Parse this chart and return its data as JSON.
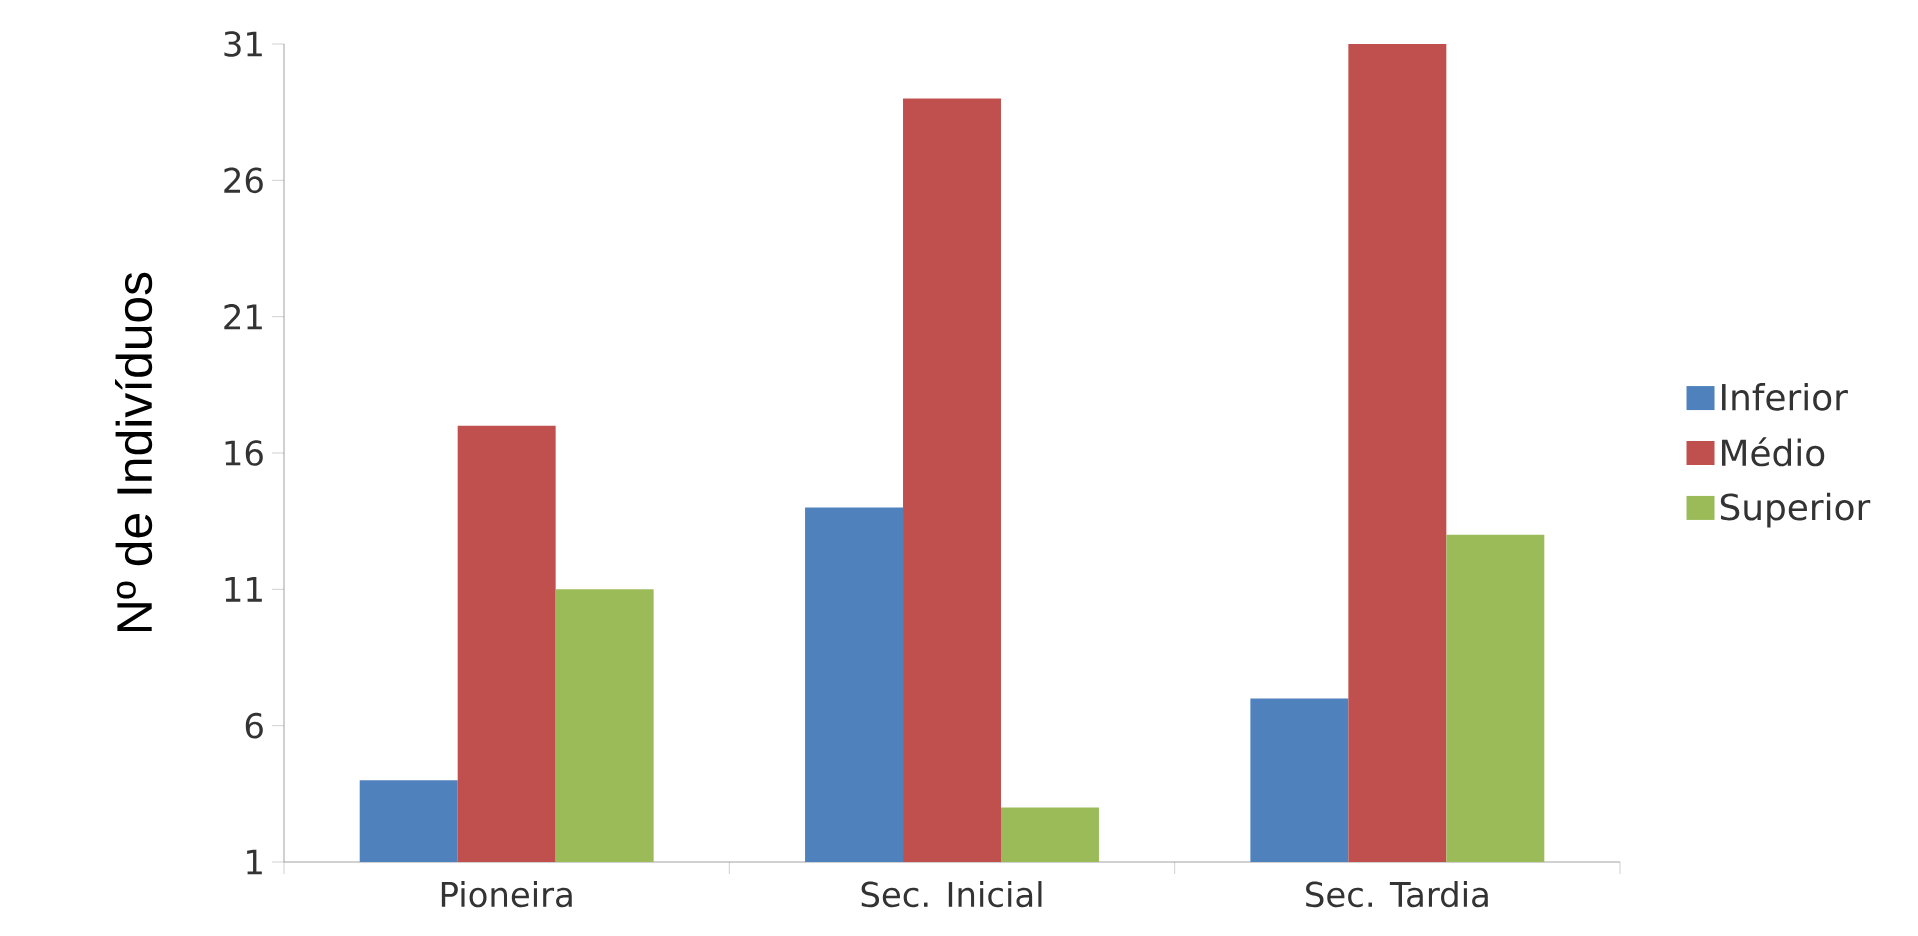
{
  "chart_data": {
    "type": "bar",
    "ylabel": "Nº de Indivíduos",
    "categories": [
      "Pioneira",
      "Sec. Inicial",
      "Sec. Tardia"
    ],
    "series": [
      {
        "name": "Inferior",
        "color": "#4f81bd",
        "values": [
          4,
          14,
          7
        ]
      },
      {
        "name": "Médio",
        "color": "#c0504d",
        "values": [
          17,
          29,
          31
        ]
      },
      {
        "name": "Superior",
        "color": "#9bbb59",
        "values": [
          11,
          3,
          13
        ]
      }
    ],
    "ylim": [
      1,
      31
    ],
    "yticks": [
      1,
      6,
      11,
      16,
      21,
      26,
      31
    ],
    "grid": false,
    "legend": "right"
  }
}
